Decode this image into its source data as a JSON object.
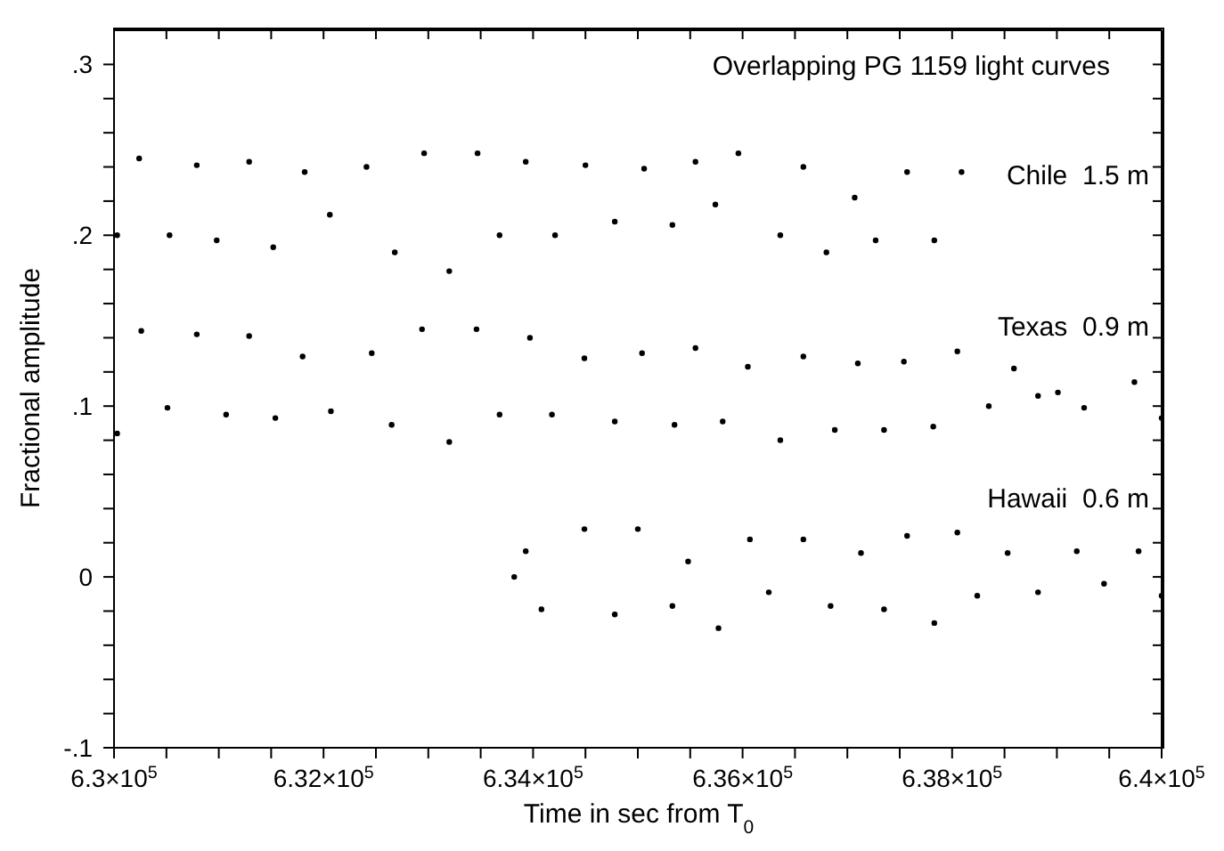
{
  "chart_data": {
    "type": "scatter",
    "title": "Overlapping PG 1159 light curves",
    "xlabel": "Time in sec from T$_{0}$",
    "ylabel": "Fractional amplitude",
    "xlim": [
      630000,
      640000
    ],
    "xticks": [
      {
        "value": 630000,
        "label": "6.3×10$^{5}$"
      },
      {
        "value": 630500,
        "label": null
      },
      {
        "value": 631000,
        "label": null
      },
      {
        "value": 631500,
        "label": null
      },
      {
        "value": 632000,
        "label": "6.32×10$^{5}$"
      },
      {
        "value": 632500,
        "label": null
      },
      {
        "value": 633000,
        "label": null
      },
      {
        "value": 633500,
        "label": null
      },
      {
        "value": 634000,
        "label": "6.34×10$^{5}$"
      },
      {
        "value": 634500,
        "label": null
      },
      {
        "value": 635000,
        "label": null
      },
      {
        "value": 635500,
        "label": null
      },
      {
        "value": 636000,
        "label": "6.36×10$^{5}$"
      },
      {
        "value": 636500,
        "label": null
      },
      {
        "value": 637000,
        "label": null
      },
      {
        "value": 637500,
        "label": null
      },
      {
        "value": 638000,
        "label": "6.38×10$^{5}$"
      },
      {
        "value": 638500,
        "label": null
      },
      {
        "value": 639000,
        "label": null
      },
      {
        "value": 639500,
        "label": null
      },
      {
        "value": 640000,
        "label": "6.4×10$^{5}$"
      }
    ],
    "ylim": [
      -0.1,
      0.32
    ],
    "yticks": [
      {
        "value": -0.1,
        "label": "-.1"
      },
      {
        "value": -0.08,
        "label": null
      },
      {
        "value": -0.06,
        "label": null
      },
      {
        "value": -0.04,
        "label": null
      },
      {
        "value": -0.02,
        "label": null
      },
      0,
      {
        "value": 0.02,
        "label": null
      },
      {
        "value": 0.04,
        "label": null
      },
      {
        "value": 0.06,
        "label": null
      },
      {
        "value": 0.08,
        "label": null
      },
      {
        "value": 0.1,
        "label": ".1"
      },
      {
        "value": 0.12,
        "label": null
      },
      {
        "value": 0.14,
        "label": null
      },
      {
        "value": 0.16,
        "label": null
      },
      {
        "value": 0.18,
        "label": null
      },
      {
        "value": 0.2,
        "label": ".2"
      },
      {
        "value": 0.22,
        "label": null
      },
      {
        "value": 0.24,
        "label": null
      },
      {
        "value": 0.26,
        "label": null
      },
      {
        "value": 0.28,
        "label": null
      },
      {
        "value": 0.3,
        "label": ".3"
      }
    ],
    "marker": "circle",
    "legend": "right",
    "series": [
      {
        "name": "Chile  1.5 m",
        "color": "#000000",
        "x": [
          630030,
          630240,
          630530,
          630790,
          630980,
          631290,
          631520,
          631820,
          632060,
          632410,
          632680,
          632960,
          633200,
          633470,
          633680,
          633930,
          634210,
          634500,
          634780,
          635060,
          635330,
          635550,
          635740,
          635960,
          636360,
          636580,
          636800,
          637070,
          637270,
          637570,
          637830,
          638090
        ],
        "values": [
          0.2,
          0.245,
          0.2,
          0.241,
          0.197,
          0.243,
          0.193,
          0.237,
          0.212,
          0.24,
          0.19,
          0.248,
          0.179,
          0.248,
          0.2,
          0.243,
          0.2,
          0.241,
          0.208,
          0.239,
          0.206,
          0.243,
          0.218,
          0.248,
          0.2,
          0.24,
          0.19,
          0.222,
          0.197,
          0.237,
          0.197,
          0.237
        ]
      },
      {
        "name": "Texas  0.9 m",
        "color": "#000000",
        "x": [
          630030,
          630260,
          630510,
          630790,
          631070,
          631290,
          631540,
          631800,
          632070,
          632460,
          632650,
          632940,
          633200,
          633460,
          633680,
          633970,
          634180,
          634490,
          634780,
          635040,
          635350,
          635550,
          635810,
          636050,
          636360,
          636580,
          636880,
          637100,
          637350,
          637540,
          637820,
          638050,
          638350,
          638590,
          638820,
          639010,
          639260,
          639740,
          640000
        ],
        "values": [
          0.084,
          0.144,
          0.099,
          0.142,
          0.095,
          0.141,
          0.093,
          0.129,
          0.097,
          0.131,
          0.089,
          0.145,
          0.079,
          0.145,
          0.095,
          0.14,
          0.095,
          0.128,
          0.091,
          0.131,
          0.089,
          0.134,
          0.091,
          0.123,
          0.08,
          0.129,
          0.086,
          0.125,
          0.086,
          0.126,
          0.088,
          0.132,
          0.1,
          0.122,
          0.106,
          0.108,
          0.099,
          0.114,
          0.093
        ]
      },
      {
        "name": "Hawaii  0.6 m",
        "color": "#000000",
        "x": [
          633820,
          633930,
          634080,
          634490,
          634780,
          635000,
          635330,
          635480,
          635770,
          636070,
          636250,
          636580,
          636840,
          637130,
          637350,
          637570,
          637830,
          638050,
          638240,
          638530,
          638820,
          639190,
          639450,
          639780,
          640000
        ],
        "values": [
          0,
          0.015,
          -0.019,
          0.028,
          -0.022,
          0.028,
          -0.017,
          0.009,
          -0.03,
          0.022,
          -0.009,
          0.022,
          -0.017,
          0.014,
          -0.019,
          0.024,
          -0.027,
          0.026,
          -0.011,
          0.014,
          -0.009,
          0.015,
          -0.004,
          0.015,
          -0.011
        ]
      }
    ]
  }
}
